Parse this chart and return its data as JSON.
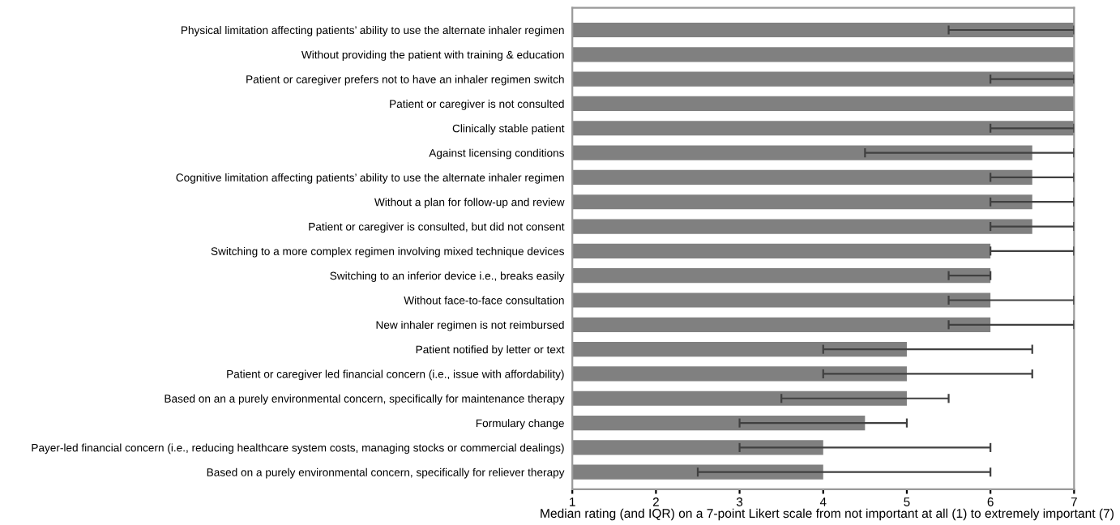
{
  "chart_data": {
    "type": "bar",
    "orientation": "horizontal",
    "xlabel": "Median rating (and IQR) on a 7-point Likert scale from not important at all (1) to extremely important (7)",
    "categories": [
      "Physical limitation affecting patients’ ability to use the alternate inhaler regimen",
      "Without providing the patient with training & education",
      "Patient or caregiver prefers not to have an inhaler regimen switch",
      "Patient or caregiver is not consulted",
      "Clinically stable patient",
      "Against licensing conditions",
      "Cognitive limitation affecting patients’ ability to use the alternate inhaler regimen",
      "Without a plan for follow-up and review",
      "Patient or caregiver is consulted, but did not consent",
      "Switching to a more complex regimen involving mixed technique devices",
      "Switching to an inferior device i.e., breaks easily",
      "Without face-to-face consultation",
      "New inhaler regimen is not reimbursed",
      "Patient notified by letter or text",
      "Patient or caregiver led financial concern (i.e., issue with affordability)",
      "Based on an a purely environmental concern, specifically for maintenance therapy",
      "Formulary change",
      "Payer-led financial concern (i.e., reducing healthcare system costs, managing stocks or commercial dealings)",
      "Based on a purely environmental concern, specifically for reliever therapy"
    ],
    "values": [
      7,
      7,
      7,
      7,
      7,
      6.5,
      6.5,
      6.5,
      6.5,
      6,
      6,
      6,
      6,
      5,
      5,
      5,
      4.5,
      4,
      4
    ],
    "errors": [
      [
        5.5,
        7
      ],
      null,
      [
        6,
        7
      ],
      null,
      [
        6,
        7
      ],
      [
        4.5,
        7
      ],
      [
        6,
        7
      ],
      [
        6,
        7
      ],
      [
        6,
        7
      ],
      [
        6,
        7
      ],
      [
        5.5,
        6
      ],
      [
        5.5,
        7
      ],
      [
        5.5,
        7
      ],
      [
        4,
        6.5
      ],
      [
        4,
        6.5
      ],
      [
        3.5,
        5.5
      ],
      [
        3,
        5
      ],
      [
        3,
        6
      ],
      [
        2.5,
        6
      ]
    ],
    "color": "#808080",
    "xlim": [
      1,
      7
    ],
    "xticks": [
      1,
      2,
      3,
      4,
      5,
      6,
      7
    ],
    "grid": false
  }
}
